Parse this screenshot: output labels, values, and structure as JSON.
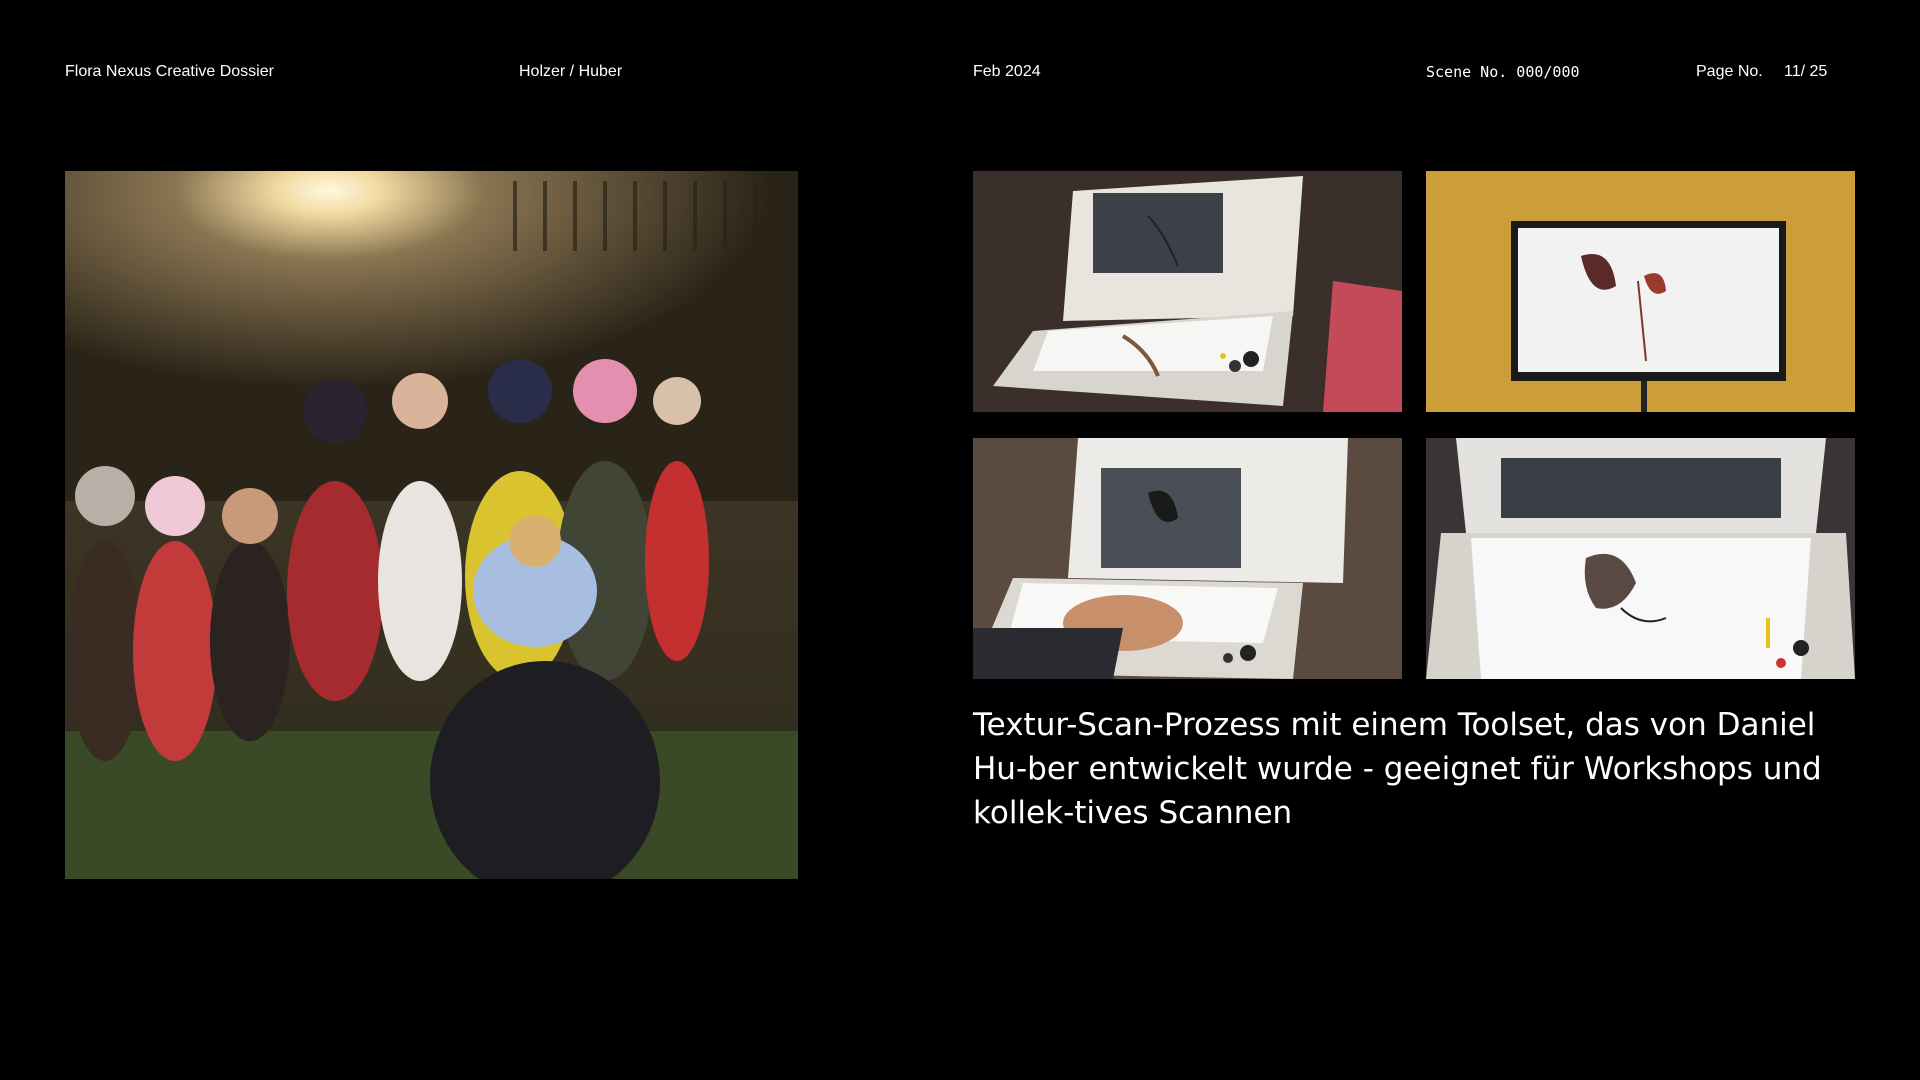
{
  "header": {
    "title": "Flora Nexus Creative Dossier",
    "authors": "Holzer / Huber",
    "date": "Feb 2024",
    "scene": "Scene No. 000/000",
    "page_label": "Page No.",
    "page_value": "11/ 25"
  },
  "images": {
    "main": "children-in-park-photo",
    "grid": [
      "scanner-stick-photo",
      "leaf-monitor-photo",
      "scanner-hand-photo",
      "scanner-leaf-photo"
    ]
  },
  "caption": "Textur-Scan-Prozess mit einem Toolset, das von Daniel Hu-ber entwickelt wurde - geeignet für Workshops und kollek-tives Scannen"
}
